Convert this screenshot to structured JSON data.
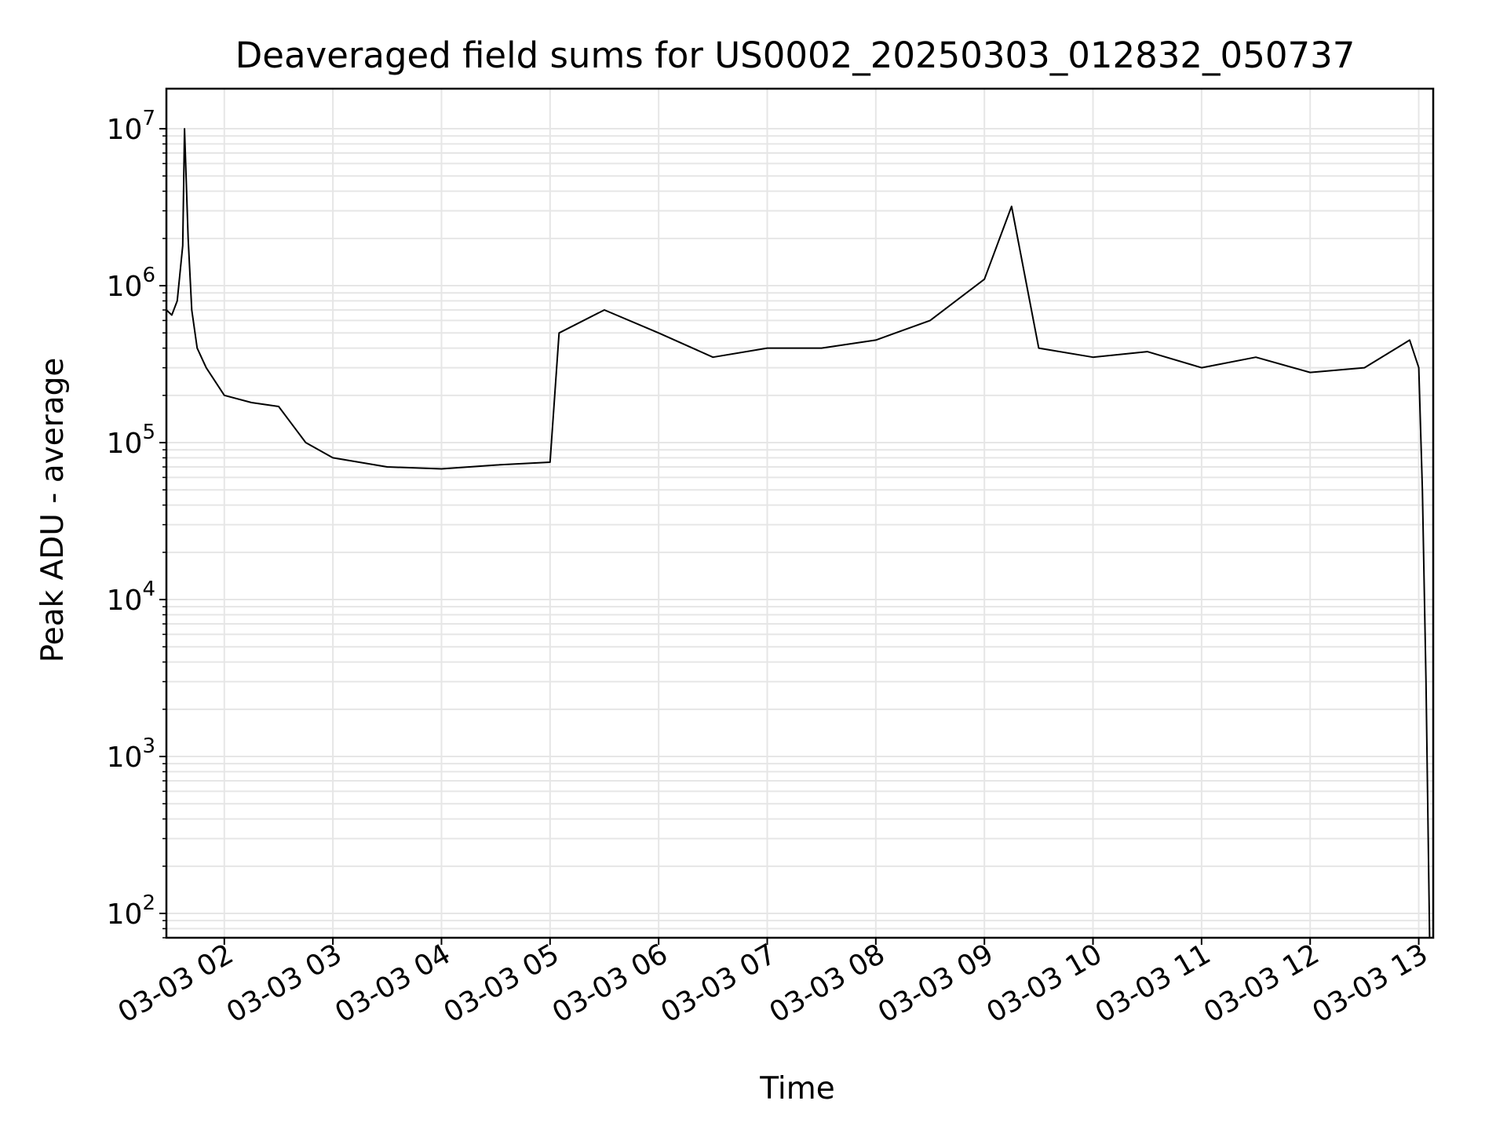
{
  "chart_data": {
    "type": "line",
    "title": "Deaveraged field sums for US0002_20250303_012832_050737",
    "xlabel": "Time",
    "ylabel": "Peak ADU - average",
    "yscale": "log",
    "ylim": [
      70,
      18000000
    ],
    "xlim": [
      "2025-03-03 01:28",
      "2025-03-03 13:08"
    ],
    "grid": true,
    "legend": "none",
    "line_color": "#000000",
    "grid_color": "#e6e6e6",
    "x_ticks": [
      {
        "value": "2025-03-03 02:00",
        "label": "03-03 02"
      },
      {
        "value": "2025-03-03 03:00",
        "label": "03-03 03"
      },
      {
        "value": "2025-03-03 04:00",
        "label": "03-03 04"
      },
      {
        "value": "2025-03-03 05:00",
        "label": "03-03 05"
      },
      {
        "value": "2025-03-03 06:00",
        "label": "03-03 06"
      },
      {
        "value": "2025-03-03 07:00",
        "label": "03-03 07"
      },
      {
        "value": "2025-03-03 08:00",
        "label": "03-03 08"
      },
      {
        "value": "2025-03-03 09:00",
        "label": "03-03 09"
      },
      {
        "value": "2025-03-03 10:00",
        "label": "03-03 10"
      },
      {
        "value": "2025-03-03 11:00",
        "label": "03-03 11"
      },
      {
        "value": "2025-03-03 12:00",
        "label": "03-03 12"
      },
      {
        "value": "2025-03-03 13:00",
        "label": "03-03 13"
      }
    ],
    "y_ticks": [
      {
        "value": 100,
        "base": "10",
        "exp": "2"
      },
      {
        "value": 1000,
        "base": "10",
        "exp": "3"
      },
      {
        "value": 10000,
        "base": "10",
        "exp": "4"
      },
      {
        "value": 100000,
        "base": "10",
        "exp": "5"
      },
      {
        "value": 1000000,
        "base": "10",
        "exp": "6"
      },
      {
        "value": 10000000,
        "base": "10",
        "exp": "7"
      }
    ],
    "series": [
      {
        "values": [
          [
            "2025-03-03 01:28",
            700000
          ],
          [
            "2025-03-03 01:31",
            650000
          ],
          [
            "2025-03-03 01:34",
            800000
          ],
          [
            "2025-03-03 01:37",
            1800000
          ],
          [
            "2025-03-03 01:38",
            10000000
          ],
          [
            "2025-03-03 01:40",
            2000000
          ],
          [
            "2025-03-03 01:42",
            700000
          ],
          [
            "2025-03-03 01:45",
            400000
          ],
          [
            "2025-03-03 01:50",
            300000
          ],
          [
            "2025-03-03 02:00",
            200000
          ],
          [
            "2025-03-03 02:15",
            180000
          ],
          [
            "2025-03-03 02:30",
            170000
          ],
          [
            "2025-03-03 02:45",
            100000
          ],
          [
            "2025-03-03 03:00",
            80000
          ],
          [
            "2025-03-03 03:30",
            70000
          ],
          [
            "2025-03-03 04:00",
            68000
          ],
          [
            "2025-03-03 04:30",
            72000
          ],
          [
            "2025-03-03 05:00",
            75000
          ],
          [
            "2025-03-03 05:05",
            500000
          ],
          [
            "2025-03-03 05:30",
            700000
          ],
          [
            "2025-03-03 06:00",
            500000
          ],
          [
            "2025-03-03 06:30",
            350000
          ],
          [
            "2025-03-03 07:00",
            400000
          ],
          [
            "2025-03-03 07:30",
            400000
          ],
          [
            "2025-03-03 08:00",
            450000
          ],
          [
            "2025-03-03 08:30",
            600000
          ],
          [
            "2025-03-03 09:00",
            1100000
          ],
          [
            "2025-03-03 09:15",
            3200000
          ],
          [
            "2025-03-03 09:30",
            400000
          ],
          [
            "2025-03-03 10:00",
            350000
          ],
          [
            "2025-03-03 10:30",
            380000
          ],
          [
            "2025-03-03 11:00",
            300000
          ],
          [
            "2025-03-03 11:30",
            350000
          ],
          [
            "2025-03-03 12:00",
            280000
          ],
          [
            "2025-03-03 12:30",
            300000
          ],
          [
            "2025-03-03 12:55",
            450000
          ],
          [
            "2025-03-03 13:00",
            300000
          ],
          [
            "2025-03-03 13:02",
            50000
          ],
          [
            "2025-03-03 13:04",
            3000
          ],
          [
            "2025-03-03 13:06",
            70
          ]
        ]
      }
    ]
  }
}
